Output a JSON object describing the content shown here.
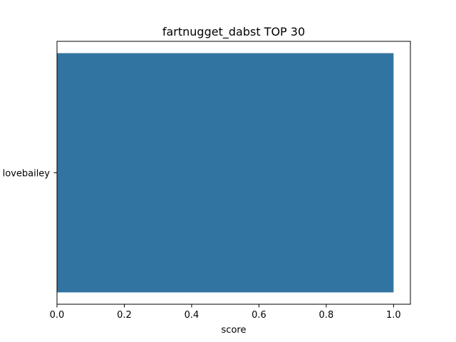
{
  "chart_data": {
    "type": "bar",
    "orientation": "horizontal",
    "title": "fartnugget_dabst TOP 30",
    "xlabel": "score",
    "ylabel": "",
    "categories": [
      "lovebailey"
    ],
    "values": [
      1.0
    ],
    "xlim": [
      0,
      1.05
    ],
    "xticks": [
      0.0,
      0.2,
      0.4,
      0.6,
      0.8,
      1.0
    ],
    "xtick_labels": [
      "0.0",
      "0.2",
      "0.4",
      "0.6",
      "0.8",
      "1.0"
    ],
    "bar_color": "#3274a1",
    "grid": false
  }
}
